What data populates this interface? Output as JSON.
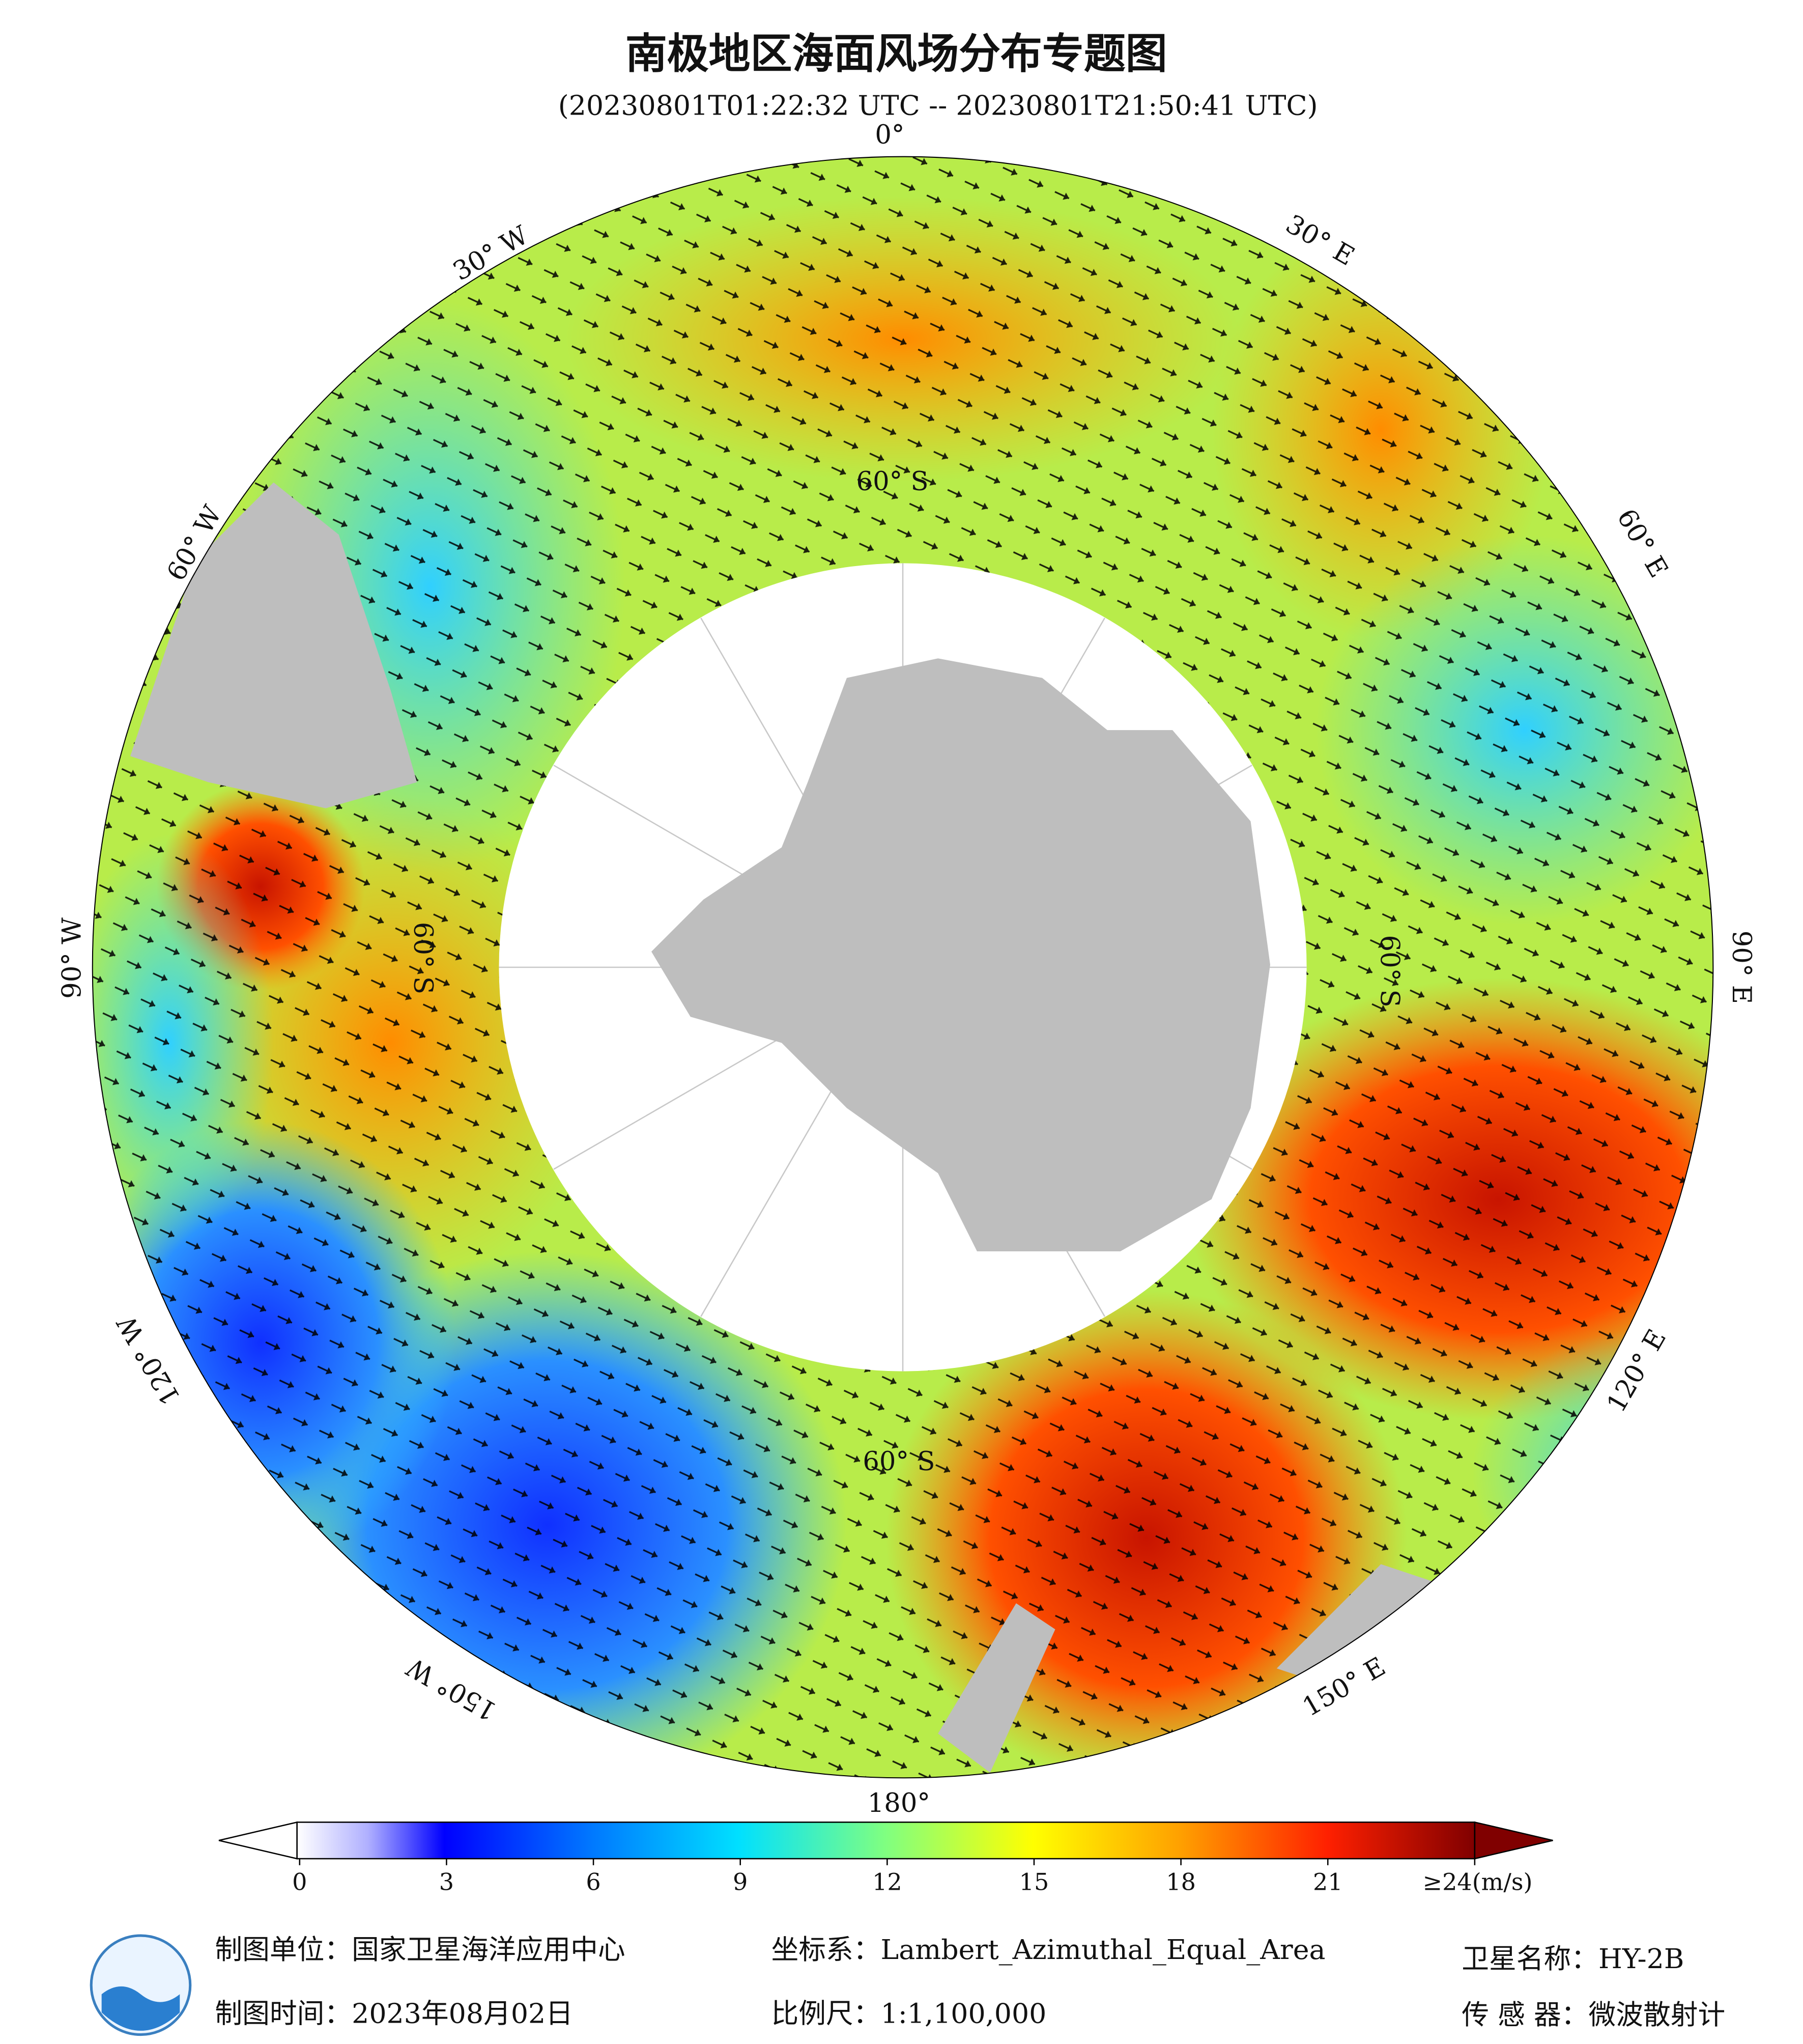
{
  "title": "南极地区海面风场分布专题图",
  "subtitle": "(20230801T01:22:32 UTC -- 20230801T21:50:41 UTC)",
  "map": {
    "longitude_labels": [
      "0°",
      "30° E",
      "60° E",
      "90° E",
      "120° E",
      "150° E",
      "180°",
      "150° W",
      "120° W",
      "90° W",
      "60° W",
      "30° W"
    ],
    "latitude_labels": [
      "60° S",
      "60° S",
      "60° S",
      "60° S"
    ]
  },
  "colorbar": {
    "range": [
      0,
      24
    ],
    "ticks": [
      0,
      3,
      6,
      9,
      12,
      15,
      18,
      21,
      {
        "value": 24,
        "label": "≥24(m/s)"
      }
    ]
  },
  "footer": {
    "unit": "制图单位：国家卫星海洋应用中心",
    "date": "制图时间：2023年08月02日",
    "projection": "坐标系：Lambert_Azimuthal_Equal_Area",
    "scale": "比例尺：1:1,100,000",
    "satellite": "卫星名称：HY-2B",
    "sensor": "传 感 器：微波散射计"
  }
}
